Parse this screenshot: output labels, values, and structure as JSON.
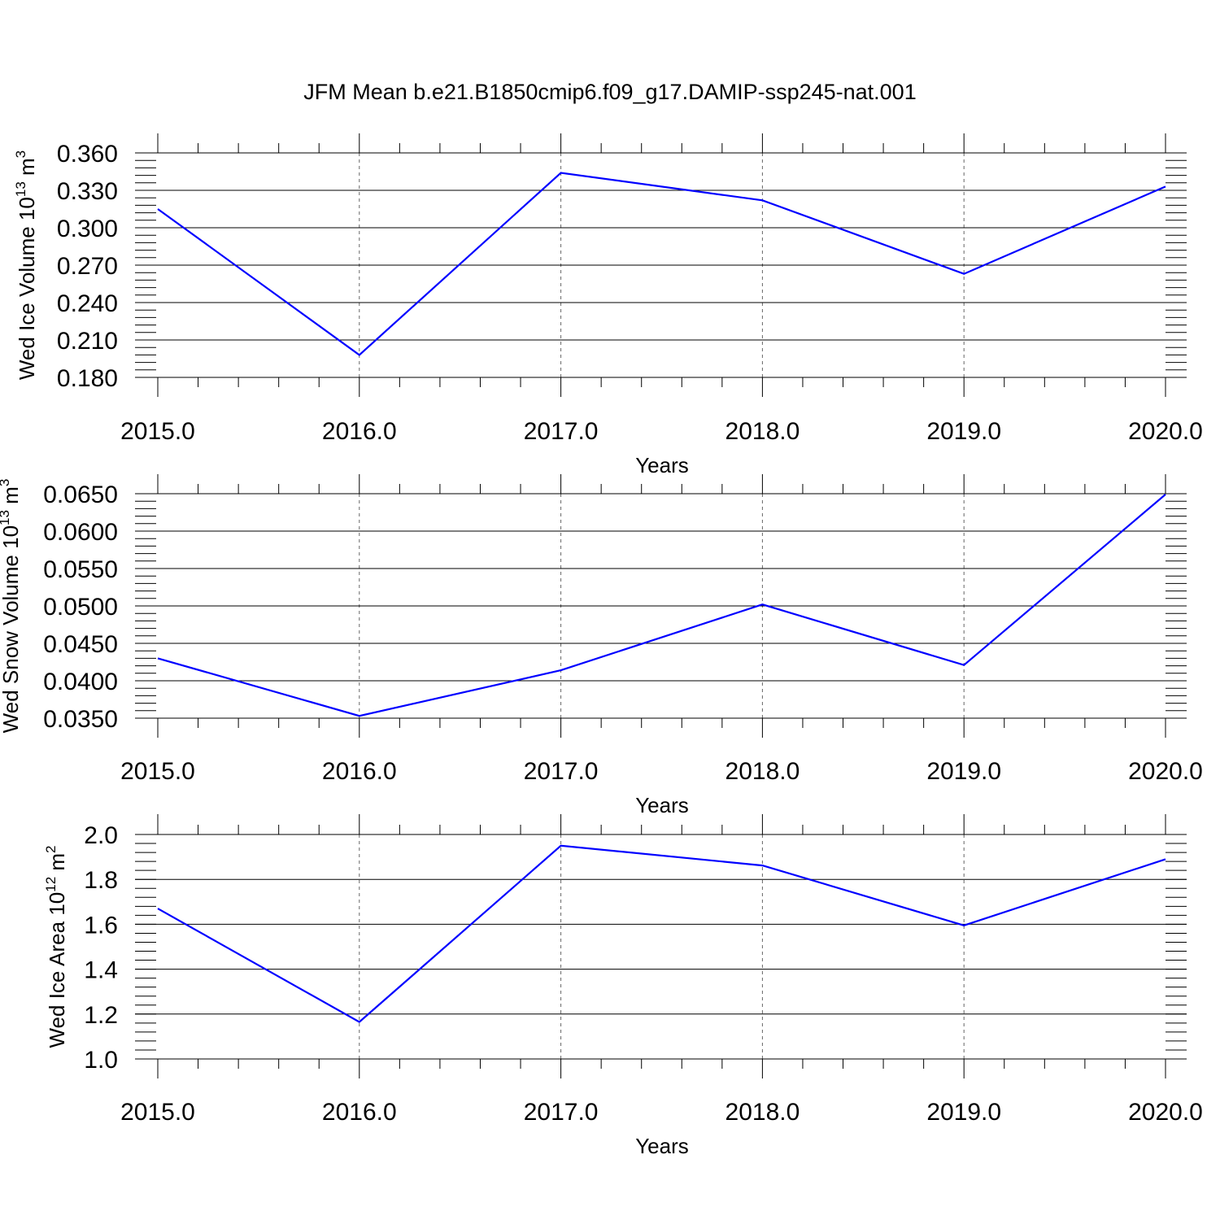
{
  "title": "JFM Mean b.e21.B1850cmip6.f09_g17.DAMIP-ssp245-nat.001",
  "colors": {
    "line": "#0000ff",
    "axis": "#000000",
    "grid": "#666666"
  },
  "chart_data": [
    {
      "type": "line",
      "xlabel": "Years",
      "ylabel": "Wed Ice Volume 10",
      "ylabel_exp": "13",
      "ylabel_unit": " m",
      "ylabel_unit_exp": "3",
      "x": [
        2015,
        2016,
        2017,
        2018,
        2019,
        2020
      ],
      "x_tick_labels": [
        "2015.0",
        "2016.0",
        "2017.0",
        "2018.0",
        "2019.0",
        "2020.0"
      ],
      "y_tick_labels": [
        "0.180",
        "0.210",
        "0.240",
        "0.270",
        "0.300",
        "0.330",
        "0.360"
      ],
      "y_ticks": [
        0.18,
        0.21,
        0.24,
        0.27,
        0.3,
        0.33,
        0.36
      ],
      "ylim": [
        0.18,
        0.36
      ],
      "y_minor_step": 0.006,
      "values": [
        0.315,
        0.198,
        0.344,
        0.322,
        0.263,
        0.333
      ]
    },
    {
      "type": "line",
      "xlabel": "Years",
      "ylabel": "Wed Snow Volume 10",
      "ylabel_exp": "13",
      "ylabel_unit": " m",
      "ylabel_unit_exp": "3",
      "x": [
        2015,
        2016,
        2017,
        2018,
        2019,
        2020
      ],
      "x_tick_labels": [
        "2015.0",
        "2016.0",
        "2017.0",
        "2018.0",
        "2019.0",
        "2020.0"
      ],
      "y_tick_labels": [
        "0.0350",
        "0.0400",
        "0.0450",
        "0.0500",
        "0.0550",
        "0.0600",
        "0.0650"
      ],
      "y_ticks": [
        0.035,
        0.04,
        0.045,
        0.05,
        0.055,
        0.06,
        0.065
      ],
      "ylim": [
        0.035,
        0.065
      ],
      "y_minor_step": 0.001,
      "values": [
        0.043,
        0.0353,
        0.0414,
        0.0502,
        0.0421,
        0.0649
      ]
    },
    {
      "type": "line",
      "xlabel": "Years",
      "ylabel": "Wed Ice Area 10",
      "ylabel_exp": "12",
      "ylabel_unit": " m",
      "ylabel_unit_exp": "2",
      "x": [
        2015,
        2016,
        2017,
        2018,
        2019,
        2020
      ],
      "x_tick_labels": [
        "2015.0",
        "2016.0",
        "2017.0",
        "2018.0",
        "2019.0",
        "2020.0"
      ],
      "y_tick_labels": [
        "1.0",
        "1.2",
        "1.4",
        "1.6",
        "1.8",
        "2.0"
      ],
      "y_ticks": [
        1.0,
        1.2,
        1.4,
        1.6,
        1.8,
        2.0
      ],
      "ylim": [
        1.0,
        2.0
      ],
      "y_minor_step": 0.04,
      "values": [
        1.67,
        1.165,
        1.95,
        1.862,
        1.595,
        1.89
      ]
    }
  ]
}
